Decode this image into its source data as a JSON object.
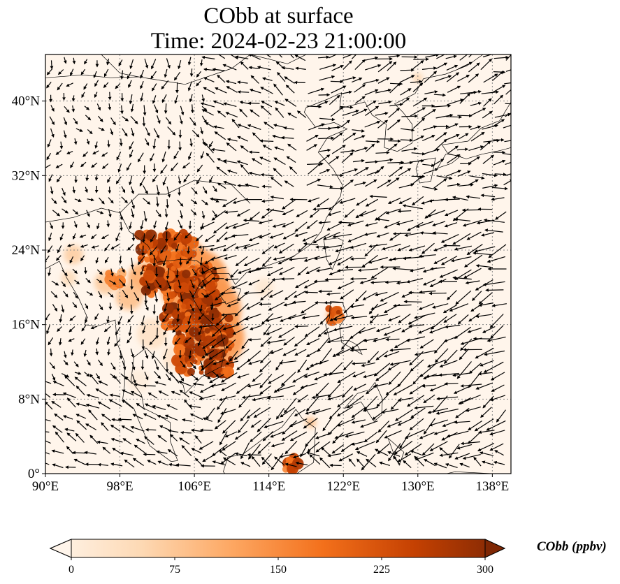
{
  "figure": {
    "title_line1": "CObb at surface",
    "title_line2": "Time: 2024-02-23 21:00:00"
  },
  "map": {
    "lon_range": [
      90,
      140
    ],
    "lat_range": [
      0,
      45
    ],
    "lon_ticks": [
      {
        "value": 90,
        "label": "90°E"
      },
      {
        "value": 98,
        "label": "98°E"
      },
      {
        "value": 106,
        "label": "106°E"
      },
      {
        "value": 114,
        "label": "114°E"
      },
      {
        "value": 122,
        "label": "122°E"
      },
      {
        "value": 130,
        "label": "130°E"
      },
      {
        "value": 138,
        "label": "138°E"
      }
    ],
    "lat_ticks": [
      {
        "value": 0,
        "label": "0°"
      },
      {
        "value": 8,
        "label": "8°N"
      },
      {
        "value": 16,
        "label": "16°N"
      },
      {
        "value": 24,
        "label": "24°N"
      },
      {
        "value": 32,
        "label": "32°N"
      },
      {
        "value": 40,
        "label": "40°N"
      }
    ],
    "gridlines": true,
    "field": "CObb concentration with surface wind vectors",
    "hotspots": [
      {
        "name": "indochina-main",
        "lon": 105.5,
        "lat": 19.0,
        "value": 300
      },
      {
        "name": "indochina-south",
        "lon": 107.0,
        "lat": 14.0,
        "value": 300
      },
      {
        "name": "laos-north",
        "lon": 103.0,
        "lat": 22.5,
        "value": 300
      },
      {
        "name": "myanmar",
        "lon": 97.5,
        "lat": 21.0,
        "value": 180
      },
      {
        "name": "luzon",
        "lon": 121.0,
        "lat": 17.0,
        "value": 280
      },
      {
        "name": "borneo",
        "lon": 116.5,
        "lat": 1.0,
        "value": 260
      }
    ]
  },
  "colorbar": {
    "label": "CObb (ppbv)",
    "min": 0,
    "max": 300,
    "ticks": [
      "0",
      "75",
      "150",
      "225",
      "300"
    ],
    "colors": [
      "#fff5eb",
      "#fdd9b4",
      "#fda762",
      "#f3701b",
      "#c54102",
      "#7f2704"
    ],
    "extend": "both"
  }
}
